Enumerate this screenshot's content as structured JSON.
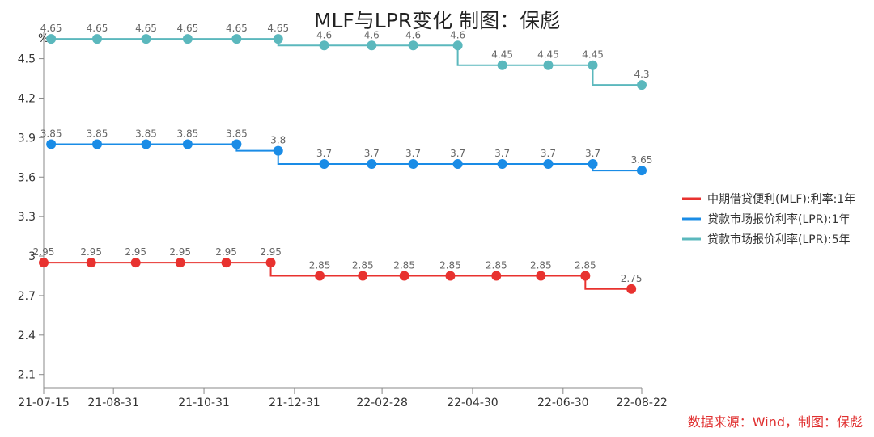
{
  "chart_data": {
    "type": "line",
    "title": "MLF与LPR变化 制图：保彪",
    "ylabel": "%",
    "xlabel": "",
    "ylim": [
      2.0,
      4.7
    ],
    "yticks": [
      2.1,
      2.4,
      2.7,
      3,
      3.3,
      3.6,
      3.9,
      4.2,
      4.5
    ],
    "xlim": [
      "2021-07-15",
      "2022-08-22"
    ],
    "xticks": [
      "21-07-15",
      "21-08-31",
      "21-10-31",
      "21-12-31",
      "22-02-28",
      "22-04-30",
      "22-06-30",
      "22-08-22"
    ],
    "step": true,
    "grid": false,
    "legend_position": "right",
    "series": [
      {
        "name": "中期借贷便利(MLF):利率:1年",
        "color": "#e8322f",
        "x": [
          "2021-07-15",
          "2021-08-16",
          "2021-09-15",
          "2021-10-15",
          "2021-11-15",
          "2021-12-15",
          "2022-01-17",
          "2022-02-15",
          "2022-03-15",
          "2022-04-15",
          "2022-05-16",
          "2022-06-15",
          "2022-07-15",
          "2022-08-15"
        ],
        "values": [
          2.95,
          2.95,
          2.95,
          2.95,
          2.95,
          2.95,
          2.85,
          2.85,
          2.85,
          2.85,
          2.85,
          2.85,
          2.85,
          2.75
        ]
      },
      {
        "name": "贷款市场报价利率(LPR):1年",
        "color": "#1a8ce6",
        "x": [
          "2021-07-20",
          "2021-08-20",
          "2021-09-22",
          "2021-10-20",
          "2021-11-22",
          "2021-12-20",
          "2022-01-20",
          "2022-02-21",
          "2022-03-21",
          "2022-04-20",
          "2022-05-20",
          "2022-06-20",
          "2022-07-20",
          "2022-08-22"
        ],
        "values": [
          3.85,
          3.85,
          3.85,
          3.85,
          3.85,
          3.8,
          3.7,
          3.7,
          3.7,
          3.7,
          3.7,
          3.7,
          3.7,
          3.65
        ]
      },
      {
        "name": "贷款市场报价利率(LPR):5年",
        "color": "#5bb8bd",
        "x": [
          "2021-07-20",
          "2021-08-20",
          "2021-09-22",
          "2021-10-20",
          "2021-11-22",
          "2021-12-20",
          "2022-01-20",
          "2022-02-21",
          "2022-03-21",
          "2022-04-20",
          "2022-05-20",
          "2022-06-20",
          "2022-07-20",
          "2022-08-22"
        ],
        "values": [
          4.65,
          4.65,
          4.65,
          4.65,
          4.65,
          4.65,
          4.6,
          4.6,
          4.6,
          4.6,
          4.45,
          4.45,
          4.45,
          4.3
        ]
      }
    ]
  },
  "source": "数据来源：Wind，制图：保彪"
}
